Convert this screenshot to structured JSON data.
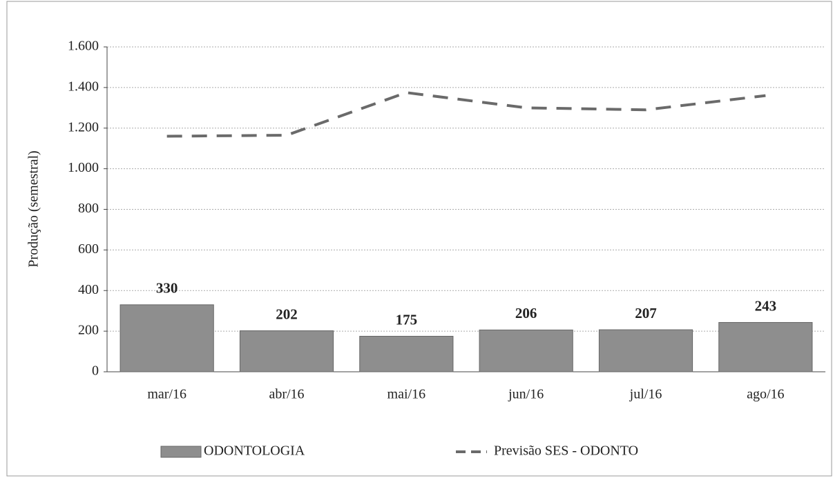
{
  "chart_data": {
    "type": "bar",
    "ylabel": "Produção (semestral)",
    "categories": [
      "mar/16",
      "abr/16",
      "mai/16",
      "jun/16",
      "jul/16",
      "ago/16"
    ],
    "series": [
      {
        "name": "ODONTOLOGIA",
        "type": "bar",
        "color": "#8e8e8e",
        "values": [
          330,
          202,
          175,
          206,
          207,
          243
        ]
      },
      {
        "name": "Previsão SES - ODONTO",
        "type": "line",
        "dashed": true,
        "color": "#6a6a6a",
        "values": [
          1160,
          1165,
          1375,
          1300,
          1290,
          1360
        ]
      }
    ],
    "ylim": [
      0,
      1600
    ],
    "yticks": [
      0,
      200,
      400,
      600,
      800,
      {
        "value": 1000,
        "label": "1.000"
      },
      {
        "value": 1200,
        "label": "1.200"
      },
      {
        "value": 1400,
        "label": "1.400"
      },
      {
        "value": 1600,
        "label": "1.600"
      }
    ],
    "grid": true,
    "legend": "bottom"
  }
}
